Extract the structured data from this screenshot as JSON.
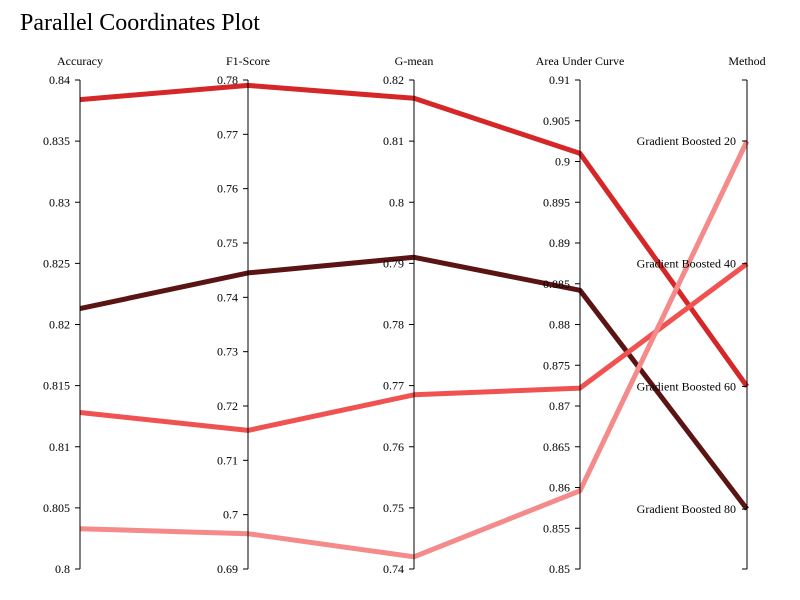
{
  "chart_data": {
    "type": "parallel-coordinates",
    "title": "Parallel Coordinates Plot",
    "axes": [
      {
        "name": "Accuracy",
        "range": [
          0.8,
          0.84
        ],
        "ticks": [
          "0.8",
          "0.805",
          "0.81",
          "0.815",
          "0.82",
          "0.825",
          "0.83",
          "0.835",
          "0.84"
        ]
      },
      {
        "name": "F1-Score",
        "range": [
          0.69,
          0.78
        ],
        "ticks": [
          "0.69",
          "0.7",
          "0.71",
          "0.72",
          "0.73",
          "0.74",
          "0.75",
          "0.76",
          "0.77",
          "0.78"
        ]
      },
      {
        "name": "G-mean",
        "range": [
          0.74,
          0.82
        ],
        "ticks": [
          "0.74",
          "0.75",
          "0.76",
          "0.77",
          "0.78",
          "0.79",
          "0.8",
          "0.81",
          "0.82"
        ]
      },
      {
        "name": "Area Under Curve",
        "range": [
          0.85,
          0.91
        ],
        "ticks": [
          "0.85",
          "0.855",
          "0.86",
          "0.865",
          "0.87",
          "0.875",
          "0.88",
          "0.885",
          "0.89",
          "0.895",
          "0.9",
          "0.905",
          "0.91"
        ]
      },
      {
        "name": "Method",
        "categorical": true,
        "categories": [
          "Gradient Boosted 20",
          "Gradient Boosted 40",
          "Gradient Boosted 60",
          "Gradient Boosted 80"
        ]
      }
    ],
    "series": [
      {
        "method": "Gradient Boosted 60",
        "color": "#d62728",
        "values": [
          0.8384,
          0.779,
          0.817,
          0.901
        ]
      },
      {
        "method": "Gradient Boosted 80",
        "color": "#5a1414",
        "values": [
          0.8213,
          0.7445,
          0.791,
          0.8842
        ]
      },
      {
        "method": "Gradient Boosted 40",
        "color": "#f05252",
        "values": [
          0.8128,
          0.7155,
          0.7685,
          0.8722
        ]
      },
      {
        "method": "Gradient Boosted 20",
        "color": "#f48a8a",
        "values": [
          0.8033,
          0.6965,
          0.742,
          0.8596
        ]
      }
    ]
  }
}
